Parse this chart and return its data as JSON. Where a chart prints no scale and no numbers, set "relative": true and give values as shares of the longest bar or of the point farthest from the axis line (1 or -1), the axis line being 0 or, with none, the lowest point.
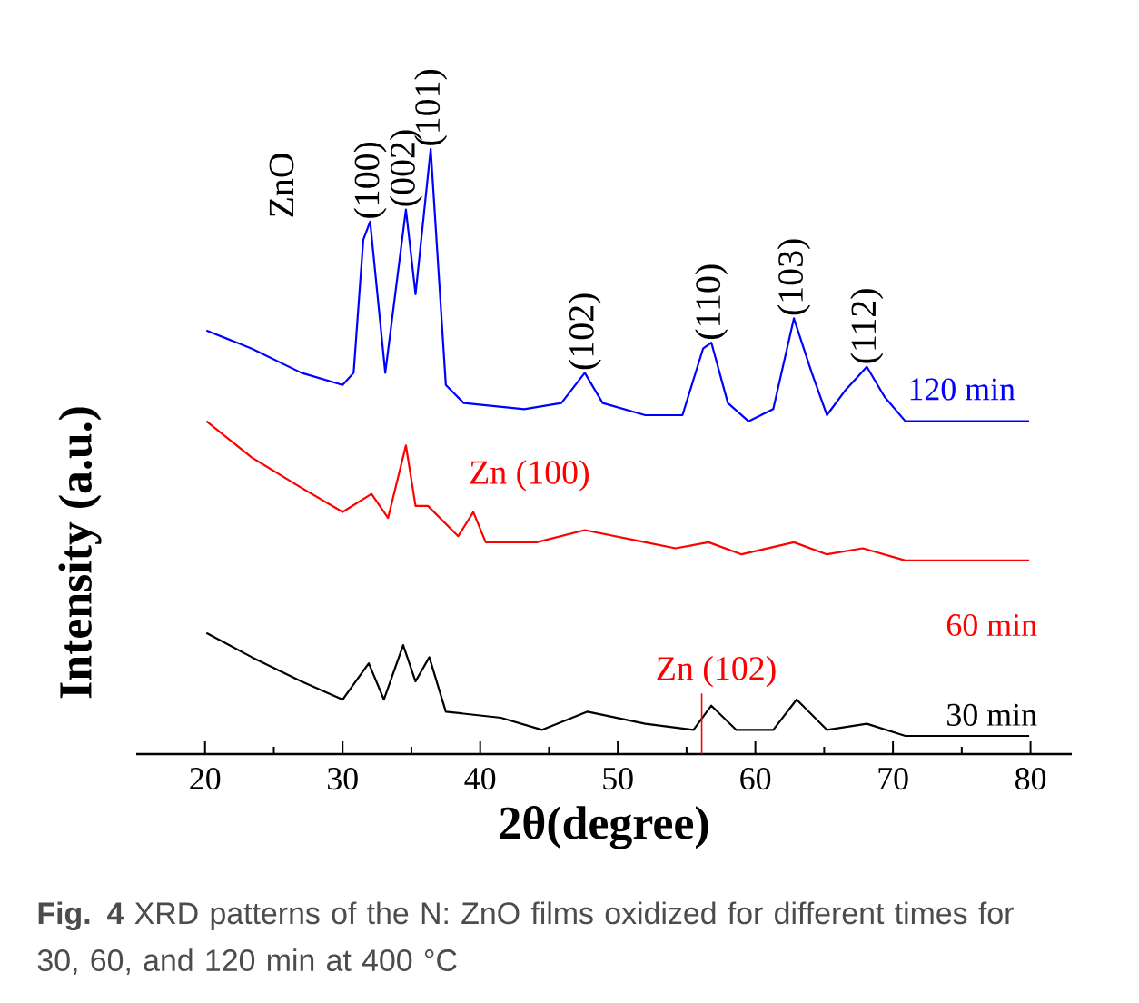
{
  "chart_data": {
    "type": "line",
    "relative": true,
    "xlabel": "2θ(degree)",
    "ylabel": "Intensity (a.u.)",
    "xlim": [
      15,
      83
    ],
    "xticks": [
      20,
      30,
      40,
      50,
      60,
      70,
      80
    ],
    "grid": false,
    "line_style": "solid",
    "marker": "none",
    "series": [
      {
        "name": "120 min",
        "color": "#0000ff",
        "x": [
          20.1,
          23.4,
          27.0,
          30.0,
          30.8,
          31.5,
          32.0,
          33.1,
          34.6,
          35.3,
          36.4,
          37.5,
          38.8,
          43.2,
          45.9,
          47.6,
          48.9,
          52.0,
          54.7,
          56.2,
          56.8,
          58.0,
          59.5,
          61.3,
          62.8,
          64.1,
          65.2,
          66.5,
          68.1,
          69.4,
          70.9,
          79.9
        ],
        "values": [
          0.7,
          0.67,
          0.63,
          0.61,
          0.63,
          0.85,
          0.88,
          0.63,
          0.9,
          0.76,
          1.0,
          0.61,
          0.58,
          0.57,
          0.58,
          0.63,
          0.58,
          0.56,
          0.56,
          0.67,
          0.68,
          0.58,
          0.55,
          0.57,
          0.72,
          0.63,
          0.56,
          0.6,
          0.64,
          0.59,
          0.55,
          0.55
        ]
      },
      {
        "name": "60 min",
        "color": "#ff0000",
        "x": [
          20.1,
          23.4,
          27.0,
          30.0,
          32.1,
          33.3,
          34.6,
          35.3,
          36.2,
          38.4,
          39.5,
          40.4,
          44.1,
          47.6,
          52.0,
          54.2,
          56.6,
          59.0,
          62.8,
          65.2,
          67.8,
          70.9,
          79.9
        ],
        "values": [
          0.55,
          0.49,
          0.44,
          0.4,
          0.43,
          0.39,
          0.51,
          0.41,
          0.41,
          0.36,
          0.4,
          0.35,
          0.35,
          0.37,
          0.35,
          0.34,
          0.35,
          0.33,
          0.35,
          0.33,
          0.34,
          0.32,
          0.32
        ]
      },
      {
        "name": "30 min",
        "color": "#000000",
        "x": [
          20.1,
          23.4,
          27.0,
          30.0,
          31.9,
          33.0,
          34.4,
          35.3,
          36.3,
          37.5,
          41.5,
          44.5,
          47.8,
          52.0,
          55.5,
          56.8,
          58.6,
          61.3,
          63.0,
          65.2,
          68.1,
          70.9,
          79.9
        ],
        "values": [
          0.2,
          0.16,
          0.12,
          0.09,
          0.15,
          0.09,
          0.18,
          0.12,
          0.16,
          0.07,
          0.06,
          0.04,
          0.07,
          0.05,
          0.04,
          0.08,
          0.04,
          0.04,
          0.09,
          0.04,
          0.05,
          0.03,
          0.03
        ]
      }
    ],
    "ref_lines": [
      {
        "axis": "x",
        "value": 56.1,
        "label": "Zn (102)",
        "color": "#ff0000",
        "line_style": "solid"
      }
    ],
    "annotations": [
      "ZnO",
      {
        "text": "(100)",
        "x": 32.0,
        "y": 0.88
      },
      {
        "text": "(002)",
        "x": 34.6,
        "y": 0.9
      },
      {
        "text": "(101)",
        "x": 36.4,
        "y": 1.0
      },
      {
        "text": "(102)",
        "x": 47.6,
        "y": 0.63
      },
      {
        "text": "(110)",
        "x": 56.8,
        "y": 0.68
      },
      {
        "text": "(103)",
        "x": 62.8,
        "y": 0.72
      },
      {
        "text": "(112)",
        "x": 68.1,
        "y": 0.64
      },
      {
        "text": "Zn (100)",
        "x": 39.5,
        "y": 0.4
      },
      "**Fig. 4** XRD patterns of the N: ZnO films oxidized for different times for 30, 60, and 120 min at 400 °C"
    ]
  }
}
